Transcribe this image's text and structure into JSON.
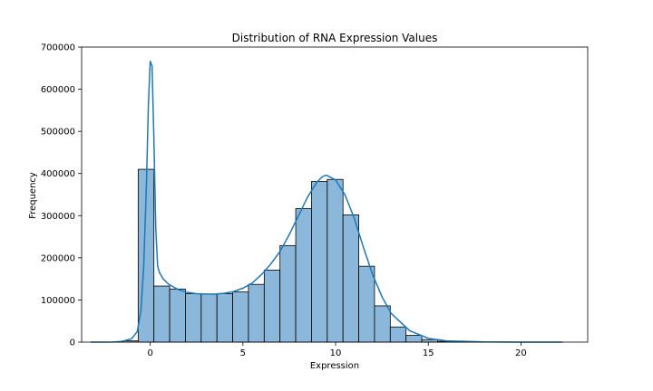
{
  "chart_data": {
    "type": "bar",
    "subtype": "histogram-with-kde",
    "title": "Distribution of RNA Expression Values",
    "xlabel": "Expression",
    "ylabel": "Frequency",
    "xlim": [
      -3.7,
      23.6
    ],
    "ylim": [
      0,
      700000
    ],
    "x_ticks": [
      0,
      5,
      10,
      15,
      20
    ],
    "y_ticks": [
      0,
      100000,
      200000,
      300000,
      400000,
      500000,
      600000,
      700000
    ],
    "grid": false,
    "legend": "none",
    "colors": {
      "bar_fill": "#8bb8da",
      "bar_edge": "#000000",
      "kde_line": "#1f77b4"
    },
    "histogram": {
      "bin_width": 0.85,
      "bin_starts": [
        -3.2,
        -2.35,
        -1.5,
        -0.65,
        0.2,
        1.05,
        1.9,
        2.75,
        3.6,
        4.45,
        5.3,
        6.15,
        7.0,
        7.85,
        8.7,
        9.55,
        10.4,
        11.25,
        12.1,
        12.95,
        13.8,
        14.65,
        15.5,
        16.35,
        17.2,
        18.05,
        18.9,
        19.75,
        20.6,
        21.45
      ],
      "counts": [
        0,
        100,
        3000,
        410000,
        133000,
        126000,
        115000,
        114000,
        115000,
        119000,
        137000,
        171000,
        229000,
        317000,
        381000,
        386000,
        302000,
        180000,
        86000,
        36000,
        16000,
        6000,
        2000,
        800,
        300,
        100,
        50,
        20,
        10,
        5
      ]
    },
    "kde": {
      "x": [
        -3.2,
        -2,
        -1.5,
        -1.0,
        -0.7,
        -0.5,
        -0.35,
        -0.2,
        -0.1,
        0.0,
        0.1,
        0.2,
        0.3,
        0.4,
        0.5,
        0.7,
        1.0,
        1.5,
        2.0,
        2.5,
        3.0,
        3.5,
        4.0,
        4.5,
        5.0,
        5.5,
        6.0,
        6.5,
        7.0,
        7.5,
        8.0,
        8.5,
        9.0,
        9.3,
        9.5,
        10.0,
        10.5,
        11.0,
        11.5,
        12.0,
        12.5,
        13.0,
        14.0,
        15.0,
        16.0,
        18.0,
        20.0,
        22.2
      ],
      "y": [
        0,
        200,
        2000,
        8000,
        25000,
        75000,
        180000,
        380000,
        560000,
        667000,
        655000,
        480000,
        270000,
        180000,
        165000,
        150000,
        137000,
        125000,
        118000,
        115000,
        114000,
        114000,
        116000,
        120000,
        128000,
        140000,
        160000,
        185000,
        215000,
        255000,
        300000,
        345000,
        380000,
        393000,
        396000,
        385000,
        350000,
        295000,
        225000,
        160000,
        108000,
        68000,
        27000,
        9000,
        3000,
        500,
        80,
        0
      ]
    }
  }
}
